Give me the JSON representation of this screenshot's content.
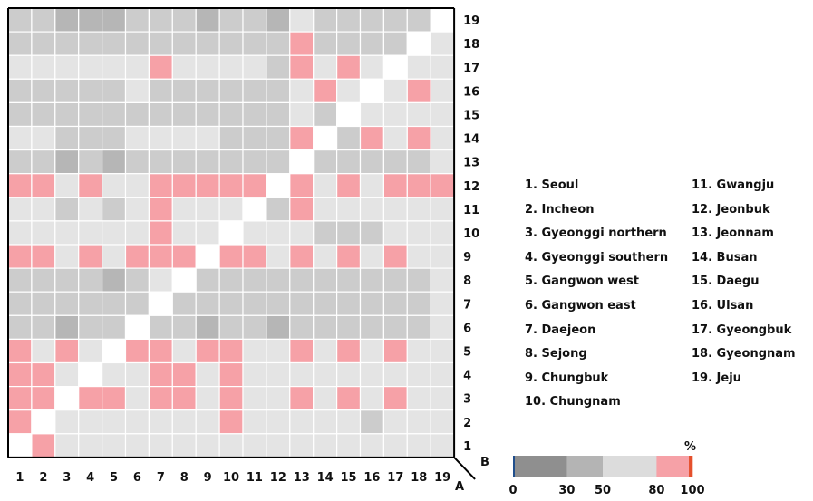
{
  "chart_data": {
    "type": "heatmap",
    "x_axis_name": "A",
    "y_axis_name": "B",
    "x_ticks": [
      "1",
      "2",
      "3",
      "4",
      "5",
      "6",
      "7",
      "8",
      "9",
      "10",
      "11",
      "12",
      "13",
      "14",
      "15",
      "16",
      "17",
      "18",
      "19"
    ],
    "y_ticks": [
      "1",
      "2",
      "3",
      "4",
      "5",
      "6",
      "7",
      "8",
      "9",
      "10",
      "11",
      "12",
      "13",
      "14",
      "15",
      "16",
      "17",
      "18",
      "19"
    ],
    "legend_regions": [
      "1. Seoul",
      "2. Incheon",
      "3. Gyeonggi northern",
      "4. Gyeonggi southern",
      "5. Gangwon west",
      "6. Gangwon east",
      "7. Daejeon",
      "8. Sejong",
      "9. Chungbuk",
      "10. Chungnam",
      "11. Gwangju",
      "12. Jeonbuk",
      "13. Jeonnam",
      "14. Busan",
      "15. Daegu",
      "16. Ulsan",
      "17. Gyeongbuk",
      "18. Gyeongnam",
      "19. Jeju"
    ],
    "colorbar": {
      "unit": "%",
      "ticks": [
        "0",
        "30",
        "50",
        "80",
        "100"
      ],
      "bands": [
        {
          "from": 0,
          "to": 1,
          "color": "#1f4e8c"
        },
        {
          "from": 1,
          "to": 30,
          "color": "#8f8f8f"
        },
        {
          "from": 30,
          "to": 50,
          "color": "#b4b4b4"
        },
        {
          "from": 50,
          "to": 80,
          "color": "#dcdcdc"
        },
        {
          "from": 80,
          "to": 98,
          "color": "#f6a1a7"
        },
        {
          "from": 98,
          "to": 100,
          "color": "#e5502c"
        }
      ]
    },
    "cell_colors": {
      "white": "#ffffff",
      "light": "#e4e4e4",
      "mid": "#cccccc",
      "dark": "#b6b6b6",
      "pink": "#f6a1a7"
    },
    "note": "rows listed top (B=19) to bottom (B=1); columns A=1..19; W=white(diagonal), L=light gray, M=mid gray, D=dark gray, P=pink",
    "rows": [
      "MMDDDMMMDMMDLMMMMMW",
      "MMMMMMMMMMMMPMMMMWL",
      "LLLLLLPLLLLMPLPLWLL",
      "MMMMMLMMMMMMLPLWLPL",
      "MMMMMMMMMMMMLMWLLLL",
      "LLMMMLLLLMMMPWMPLPL",
      "MMDMDMMMMMMMWMMMMML",
      "PPLPLLPPPPPWPLPLPPP",
      "LLMLMLPLLLWMPLLLLLL",
      "LLLLLLPLLWLLLMMMLLL",
      "PPLPLPPPWPPLPLPLPLL",
      "MMMMDMLWMMMMMMMMMML",
      "MMMMMMWMMMMMMMMMMML",
      "MMDMMWMMDMMDMMMMMML",
      "PLPLWPPLPPLLPLPLPLL",
      "PPLWLLPPLPLLLLLLLLL",
      "PPWPPLPPLPLLPLPLPLL",
      "PWLLLLLLLPLLLLLMLLL",
      "WPLLLLLLLLLLLLLLLLL"
    ]
  }
}
